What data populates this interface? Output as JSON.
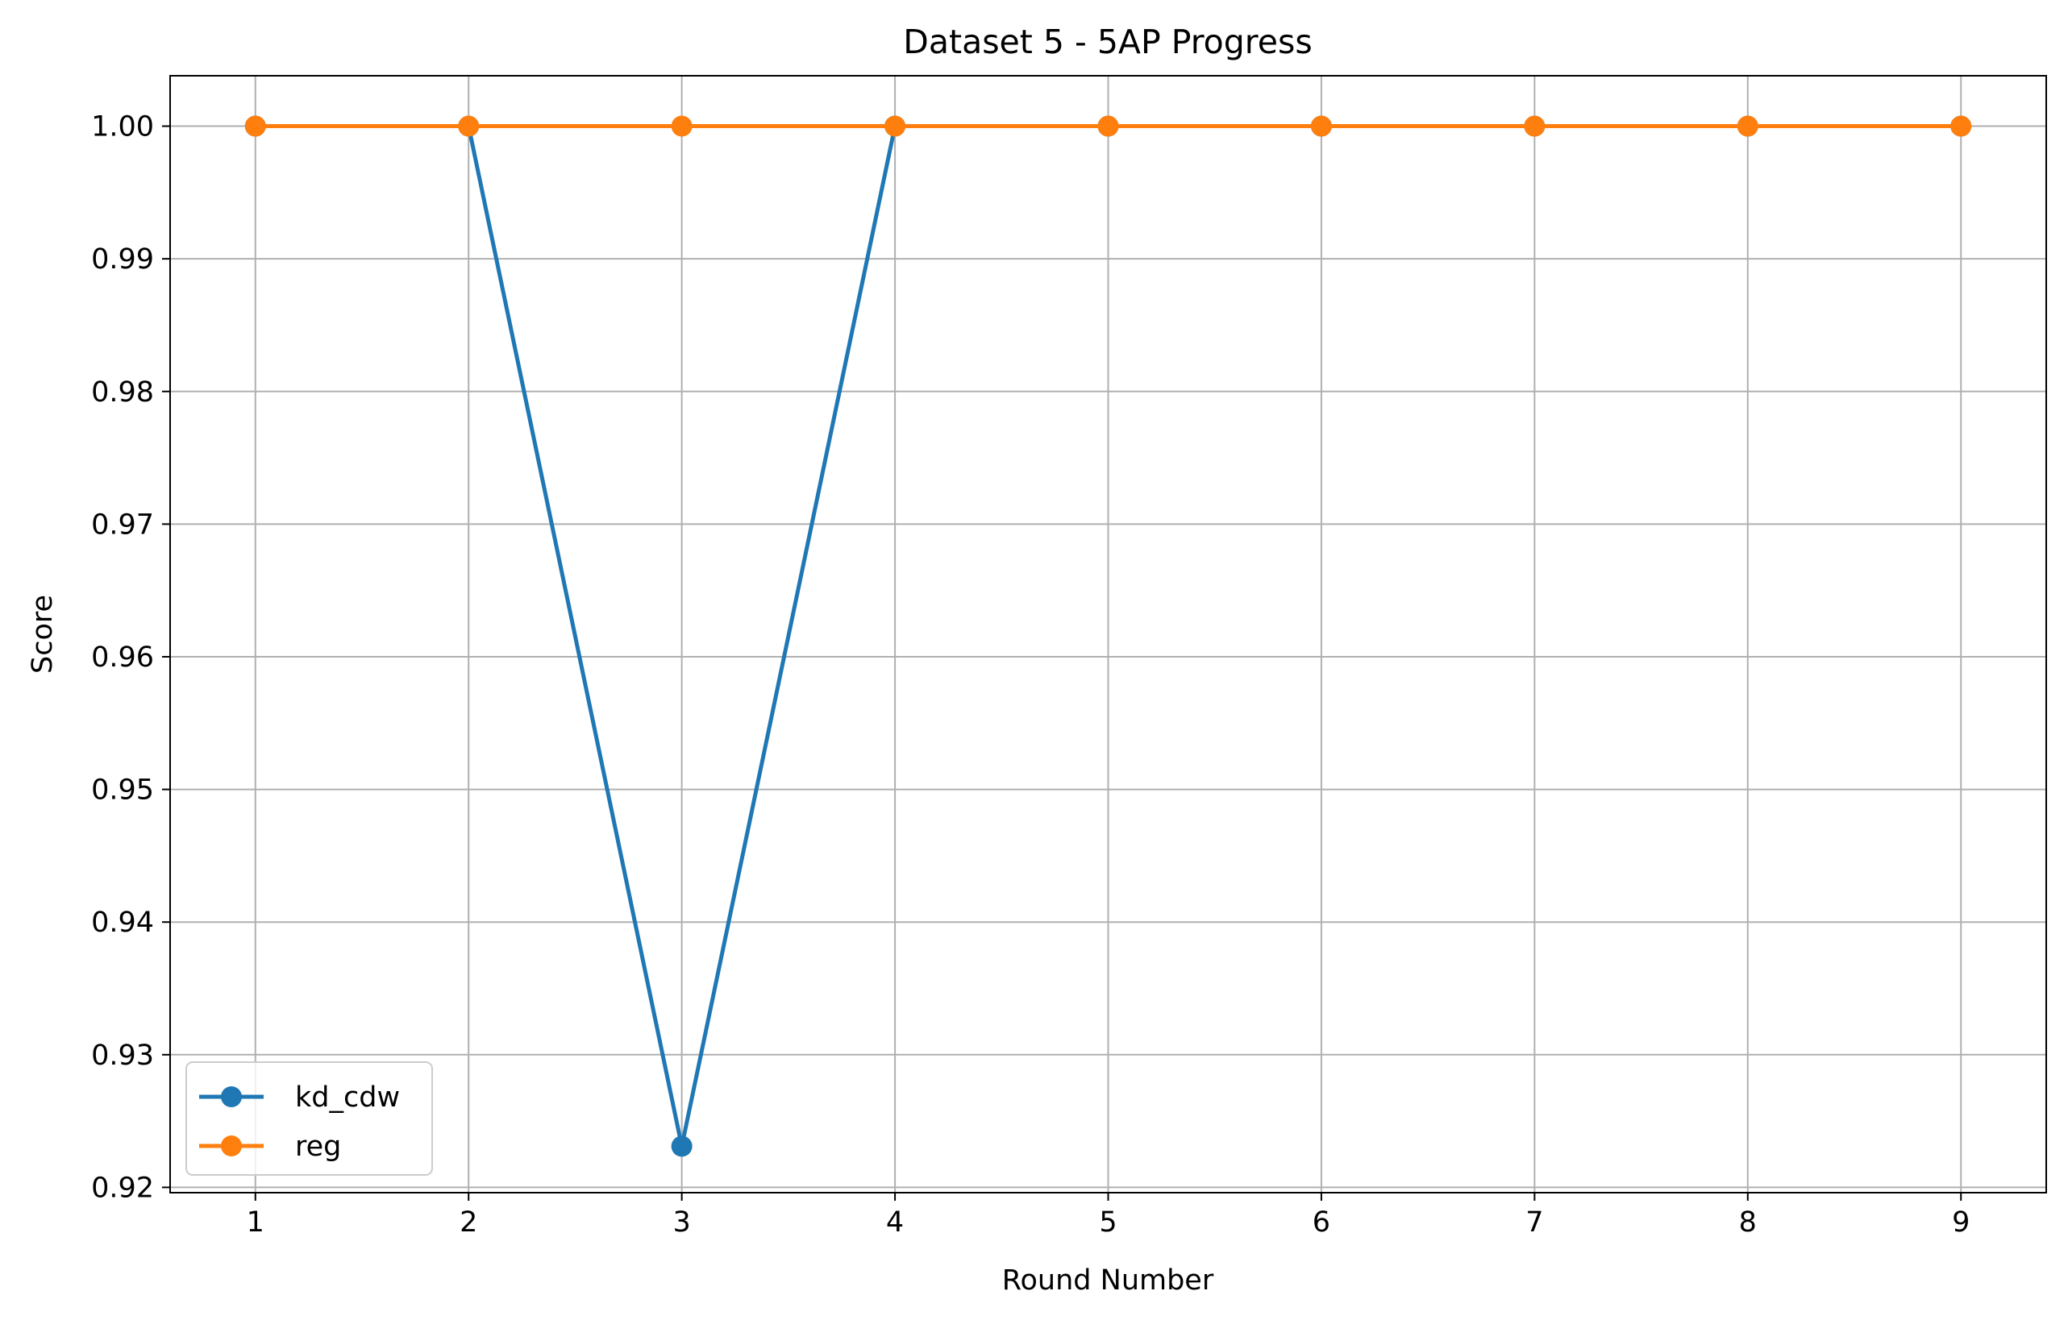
{
  "chart_data": {
    "type": "line",
    "title": "Dataset 5 - 5AP Progress",
    "xlabel": "Round Number",
    "ylabel": "Score",
    "x": [
      1,
      2,
      3,
      4,
      5,
      6,
      7,
      8,
      9
    ],
    "xlim": [
      0.6,
      9.4
    ],
    "ylim": [
      0.9196,
      1.0038
    ],
    "xticks": [
      1,
      2,
      3,
      4,
      5,
      6,
      7,
      8,
      9
    ],
    "yticks": [
      0.92,
      0.93,
      0.94,
      0.95,
      0.96,
      0.97,
      0.98,
      0.99,
      1.0
    ],
    "ytick_labels": [
      "0.92",
      "0.93",
      "0.94",
      "0.95",
      "0.96",
      "0.97",
      "0.98",
      "0.99",
      "1.00"
    ],
    "grid": true,
    "legend_position": "lower-left",
    "series": [
      {
        "name": "kd_cdw",
        "color": "#1f77b4",
        "values": [
          1.0,
          1.0,
          0.9231,
          1.0,
          1.0,
          1.0,
          1.0,
          1.0,
          1.0
        ]
      },
      {
        "name": "reg",
        "color": "#ff7f0e",
        "values": [
          1.0,
          1.0,
          1.0,
          1.0,
          1.0,
          1.0,
          1.0,
          1.0,
          1.0
        ]
      }
    ]
  }
}
